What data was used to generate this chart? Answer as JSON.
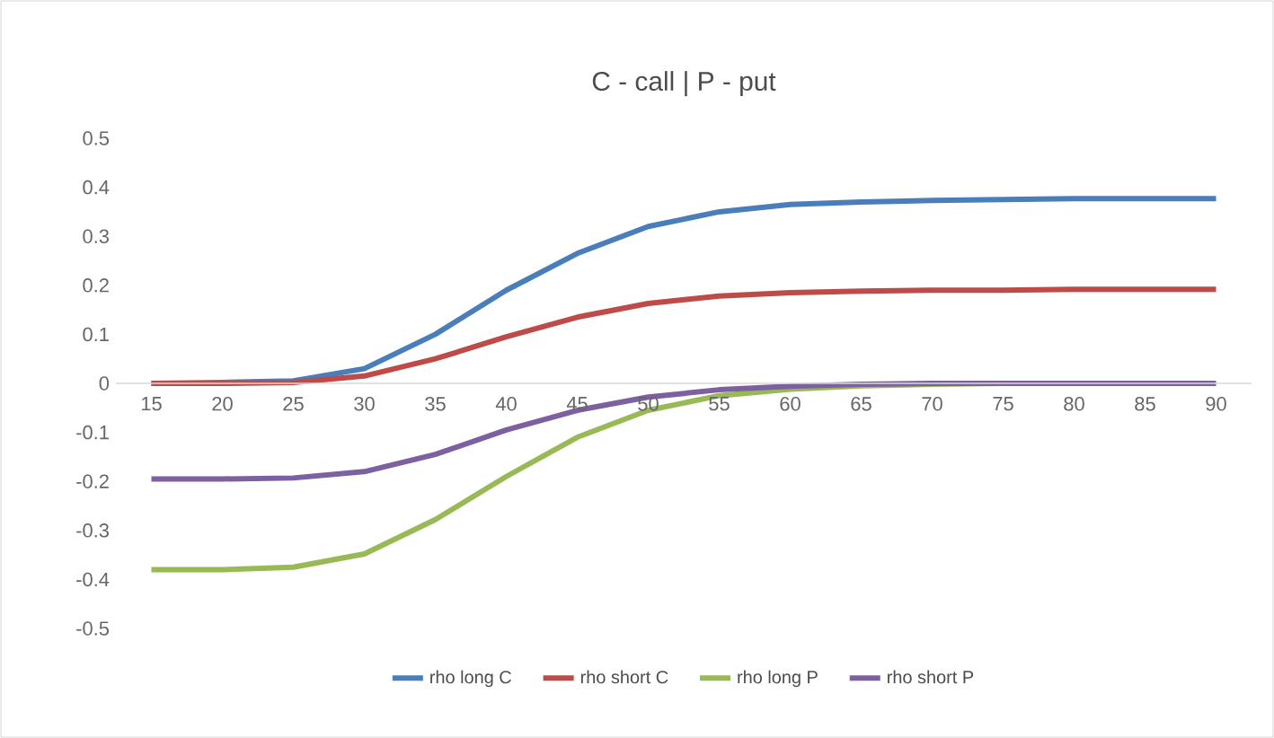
{
  "chart_data": {
    "type": "line",
    "title": "C - call | P - put",
    "categories": [
      "15",
      "20",
      "25",
      "30",
      "35",
      "40",
      "45",
      "50",
      "55",
      "60",
      "65",
      "70",
      "75",
      "80",
      "85",
      "90"
    ],
    "series": [
      {
        "name": "rho long C",
        "color": "#4a7ebb",
        "values": [
          0,
          0.002,
          0.005,
          0.03,
          0.1,
          0.19,
          0.265,
          0.32,
          0.35,
          0.365,
          0.37,
          0.373,
          0.375,
          0.377,
          0.377,
          0.377
        ]
      },
      {
        "name": "rho short C",
        "color": "#be4b48",
        "values": [
          0,
          0,
          0.002,
          0.015,
          0.05,
          0.095,
          0.135,
          0.163,
          0.178,
          0.185,
          0.188,
          0.19,
          0.19,
          0.192,
          0.192,
          0.192
        ]
      },
      {
        "name": "rho long P",
        "color": "#98b954",
        "values": [
          -0.38,
          -0.38,
          -0.375,
          -0.348,
          -0.278,
          -0.19,
          -0.11,
          -0.055,
          -0.025,
          -0.012,
          -0.005,
          -0.002,
          0,
          0,
          null,
          null
        ]
      },
      {
        "name": "rho short P",
        "color": "#7d60a0",
        "values": [
          -0.195,
          -0.195,
          -0.193,
          -0.18,
          -0.145,
          -0.095,
          -0.055,
          -0.028,
          -0.013,
          -0.006,
          -0.002,
          0,
          0,
          0,
          0,
          0
        ]
      }
    ],
    "ylim": [
      -0.5,
      0.5
    ],
    "yticks": [
      -0.5,
      -0.4,
      -0.3,
      -0.2,
      -0.1,
      0,
      0.1,
      0.2,
      0.3,
      0.4,
      0.5
    ],
    "legend": "bottom",
    "grid": false,
    "marker": "none",
    "line_style": "solid"
  }
}
